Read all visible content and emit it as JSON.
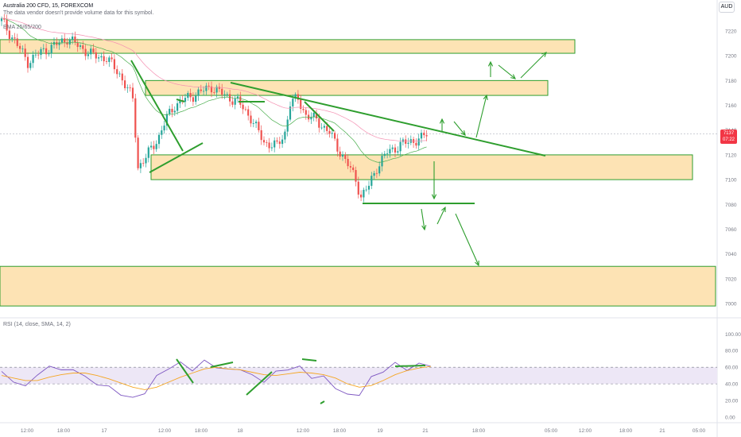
{
  "header": {
    "symbol_line": "Australia 200 CFD, 15, FOREXCOM",
    "vendor_note": "The data vendor doesn't provide volume data for this symbol.",
    "ema_label": "EMA 25/65/200",
    "rsi_label": "RSI (14, close, SMA, 14, 2)",
    "currency": "AUD"
  },
  "price_tag": {
    "price": "7137",
    "countdown": "07:22"
  },
  "colors": {
    "zone_fill": "#fde3b4",
    "drawing": "#2e9e2e",
    "up": "#26a69a",
    "down": "#ef5350",
    "rsi_line": "#7e57c2",
    "rsi_ma": "#f5a623",
    "rsi_band": "#ede7f6"
  },
  "chart_data": [
    {
      "type": "candlestick",
      "title": "Australia 200 CFD, 15, FOREXCOM",
      "x_ticks": [
        "12:00",
        "18:00",
        "17",
        "12:00",
        "18:00",
        "18",
        "12:00",
        "18:00",
        "19",
        "21",
        "18:00",
        "05:00",
        "12:00",
        "18:00",
        "21",
        "05:00"
      ],
      "y_ticks": [
        7220,
        7200,
        7180,
        7160,
        7140,
        7120,
        7100,
        7080,
        7060,
        7040,
        7020,
        7000
      ],
      "ylim": [
        6994,
        7233
      ],
      "close_path": [
        [
          0,
          7228
        ],
        [
          5,
          7212
        ],
        [
          10,
          7195
        ],
        [
          15,
          7203
        ],
        [
          20,
          7208
        ],
        [
          25,
          7214
        ],
        [
          30,
          7207
        ],
        [
          35,
          7200
        ],
        [
          40,
          7198
        ],
        [
          45,
          7185
        ],
        [
          50,
          7165
        ],
        [
          52,
          7110
        ],
        [
          55,
          7118
        ],
        [
          60,
          7135
        ],
        [
          63,
          7150
        ],
        [
          66,
          7160
        ],
        [
          70,
          7165
        ],
        [
          75,
          7170
        ],
        [
          80,
          7175
        ],
        [
          85,
          7168
        ],
        [
          90,
          7163
        ],
        [
          95,
          7150
        ],
        [
          100,
          7130
        ],
        [
          105,
          7127
        ],
        [
          108,
          7138
        ],
        [
          110,
          7162
        ],
        [
          113,
          7165
        ],
        [
          116,
          7152
        ],
        [
          120,
          7148
        ],
        [
          125,
          7138
        ],
        [
          128,
          7126
        ],
        [
          132,
          7112
        ],
        [
          135,
          7100
        ],
        [
          137,
          7086
        ],
        [
          140,
          7095
        ],
        [
          143,
          7110
        ],
        [
          147,
          7122
        ],
        [
          152,
          7128
        ],
        [
          156,
          7131
        ],
        [
          160,
          7133
        ],
        [
          162,
          7137
        ]
      ],
      "horizontal_zones": [
        {
          "from": 7213,
          "to": 7202,
          "label": ""
        },
        {
          "from": 7180,
          "to": 7168,
          "label": ""
        },
        {
          "from": 7120,
          "to": 7100,
          "label": ""
        },
        {
          "from": 7030,
          "to": 6998,
          "label": ""
        }
      ],
      "trendlines": [
        {
          "from": [
            93,
            7178
          ],
          "to": [
            223,
            7120
          ]
        }
      ],
      "support_line": 7081,
      "last_price": 7137
    },
    {
      "type": "line",
      "title": "RSI (14, close, SMA, 14, 2)",
      "y_ticks": [
        100,
        80,
        60,
        40,
        20,
        0
      ],
      "ylim": [
        0,
        100
      ],
      "band": [
        40,
        60
      ],
      "series": [
        {
          "name": "RSI",
          "values": [
            55,
            42,
            38,
            50,
            62,
            56,
            58,
            48,
            40,
            36,
            28,
            22,
            30,
            48,
            60,
            64,
            58,
            66,
            62,
            55,
            60,
            48,
            45,
            52,
            60,
            58,
            50,
            46,
            38,
            24,
            30,
            45,
            58,
            62,
            60,
            61,
            65
          ]
        },
        {
          "name": "RSI MA",
          "values": [
            50,
            47,
            44,
            44,
            48,
            51,
            53,
            53,
            50,
            46,
            41,
            36,
            33,
            36,
            42,
            48,
            53,
            58,
            60,
            58,
            57,
            54,
            51,
            50,
            52,
            54,
            53,
            51,
            47,
            40,
            36,
            38,
            44,
            51,
            56,
            59,
            61
          ]
        }
      ]
    }
  ]
}
